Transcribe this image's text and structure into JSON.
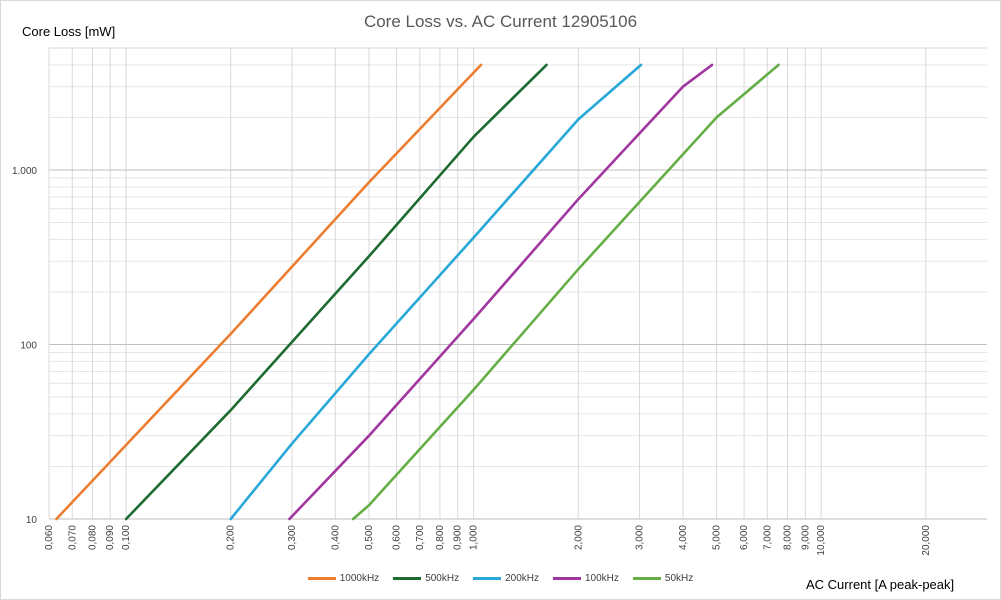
{
  "chart_data": {
    "type": "line",
    "title": "Core Loss vs. AC Current 12905106",
    "xlabel": "AC Current [A peak-peak]",
    "ylabel": "Core Loss [mW]",
    "x_scale": "log",
    "y_scale": "log",
    "xlim": [
      0.06,
      30
    ],
    "ylim": [
      10,
      5000
    ],
    "grid": true,
    "legend_position": "bottom",
    "x_ticks": [
      {
        "value": 0.06,
        "label": "0,060"
      },
      {
        "value": 0.07,
        "label": "0,070"
      },
      {
        "value": 0.08,
        "label": "0,080"
      },
      {
        "value": 0.09,
        "label": "0,090"
      },
      {
        "value": 0.1,
        "label": "0,100"
      },
      {
        "value": 0.2,
        "label": "0,200"
      },
      {
        "value": 0.3,
        "label": "0,300"
      },
      {
        "value": 0.4,
        "label": "0,400"
      },
      {
        "value": 0.5,
        "label": "0,500"
      },
      {
        "value": 0.6,
        "label": "0,600"
      },
      {
        "value": 0.7,
        "label": "0,700"
      },
      {
        "value": 0.8,
        "label": "0,800"
      },
      {
        "value": 0.9,
        "label": "0,900"
      },
      {
        "value": 1,
        "label": "1,000"
      },
      {
        "value": 2,
        "label": "2,000"
      },
      {
        "value": 3,
        "label": "3,000"
      },
      {
        "value": 4,
        "label": "4,000"
      },
      {
        "value": 5,
        "label": "5,000"
      },
      {
        "value": 6,
        "label": "6,000"
      },
      {
        "value": 7,
        "label": "7,000"
      },
      {
        "value": 8,
        "label": "8,000"
      },
      {
        "value": 9,
        "label": "9,000"
      },
      {
        "value": 10,
        "label": "10,000"
      },
      {
        "value": 20,
        "label": "20,000"
      }
    ],
    "y_ticks": [
      {
        "value": 10,
        "label": "10"
      },
      {
        "value": 100,
        "label": "100"
      },
      {
        "value": 1000,
        "label": "1.000"
      }
    ],
    "series": [
      {
        "name": "1000kHz",
        "color": "#ED7D31",
        "x": [
          0.063,
          0.2,
          0.5,
          1.05
        ],
        "y": [
          10,
          115,
          850,
          4000
        ]
      },
      {
        "name": "500kHz",
        "color": "#1E6B30",
        "x": [
          0.1,
          0.2,
          0.5,
          1.0,
          1.62
        ],
        "y": [
          10,
          42,
          320,
          1550,
          4000
        ]
      },
      {
        "name": "200kHz",
        "color": "#27A8D8",
        "x": [
          0.2,
          0.3,
          0.5,
          1.0,
          2.0,
          3.03
        ],
        "y": [
          10,
          27,
          88,
          410,
          1950,
          4000
        ]
      },
      {
        "name": "100kHz",
        "color": "#A0369E",
        "x": [
          0.295,
          0.5,
          1.0,
          2.0,
          4.0,
          4.85
        ],
        "y": [
          10,
          30,
          140,
          680,
          3000,
          4000
        ]
      },
      {
        "name": "50kHz",
        "color": "#65AE45",
        "x": [
          0.45,
          0.5,
          1.0,
          2.0,
          5.0,
          7.54
        ],
        "y": [
          10,
          12,
          55,
          270,
          2000,
          4000
        ]
      }
    ]
  }
}
